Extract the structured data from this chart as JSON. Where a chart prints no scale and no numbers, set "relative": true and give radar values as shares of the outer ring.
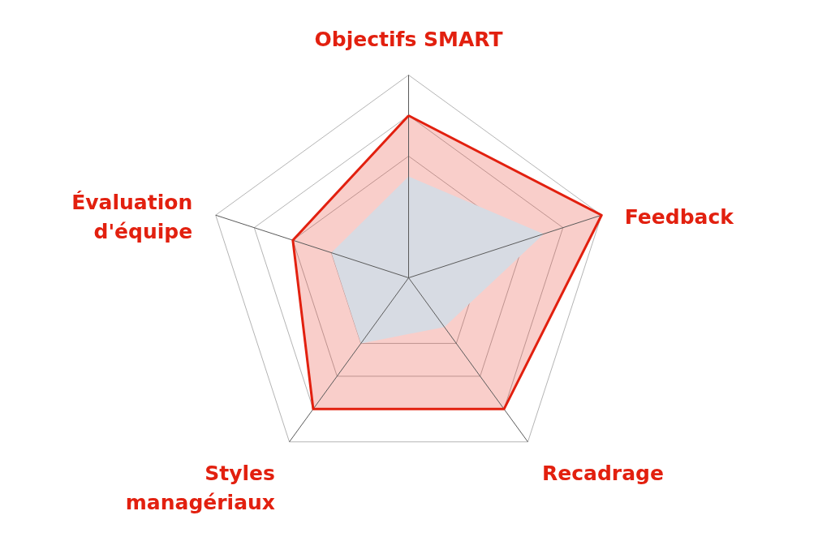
{
  "chart_data": {
    "type": "radar",
    "relative": true,
    "grid": true,
    "categories": [
      "Objectifs SMART",
      "Feedback",
      "Recadrage",
      "Styles managériaux",
      "Évaluation d'équipe"
    ],
    "series": [
      {
        "color": "#e2200f",
        "values": [
          0.8,
          1.0,
          0.8,
          0.8,
          0.6
        ]
      },
      {
        "type": "area",
        "color": "#d7dbe3",
        "values": [
          0.5,
          0.7,
          0.3,
          0.4,
          0.4
        ]
      }
    ]
  }
}
